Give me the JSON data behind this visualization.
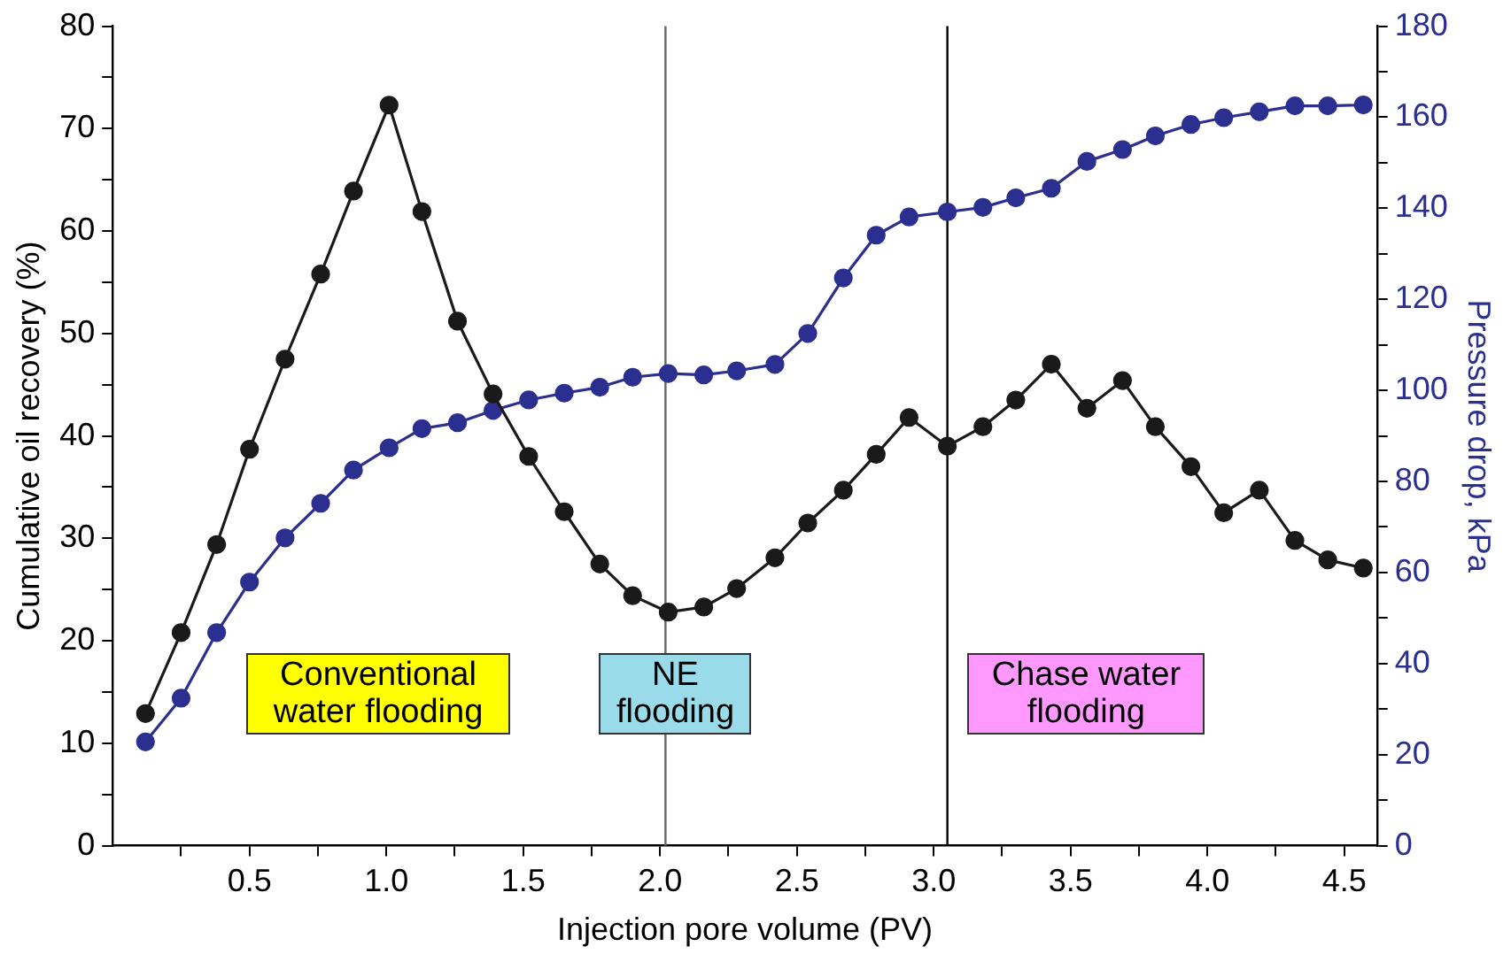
{
  "chart_data": {
    "type": "line",
    "xlabel": "Injection pore volume (PV)",
    "ylabel": "Cumulative oil recovery (%)",
    "y2label": "Pressure drop, kPa",
    "x": [
      0.12,
      0.25,
      0.38,
      0.5,
      0.63,
      0.76,
      0.88,
      1.01,
      1.13,
      1.26,
      1.39,
      1.52,
      1.65,
      1.78,
      1.9,
      2.03,
      2.16,
      2.28,
      2.42,
      2.54,
      2.67,
      2.79,
      2.91,
      3.05,
      3.18,
      3.3,
      3.43,
      3.56,
      3.69,
      3.81,
      3.94,
      4.06,
      4.19,
      4.32,
      4.44,
      4.57
    ],
    "series": [
      {
        "color": "#1a1a1a",
        "values": [
          12.9,
          20.8,
          29.4,
          38.7,
          47.5,
          55.8,
          63.9,
          72.3,
          61.9,
          51.2,
          44.1,
          38.0,
          32.6,
          27.5,
          24.4,
          22.8,
          23.3,
          25.1,
          28.1,
          31.5,
          34.7,
          38.2,
          41.8,
          39.0,
          40.9,
          43.5,
          47.0,
          42.7,
          45.4,
          40.9,
          37.0,
          32.5,
          34.7,
          29.8,
          27.9,
          27.1
        ]
      },
      {
        "color": "#2b2f8f",
        "axis": "y2",
        "values": [
          22.8,
          32.4,
          46.8,
          57.9,
          67.6,
          75.2,
          82.5,
          87.4,
          91.6,
          92.9,
          95.6,
          97.9,
          99.4,
          100.7,
          102.9,
          103.7,
          103.4,
          104.3,
          105.7,
          112.5,
          124.7,
          134.1,
          138.1,
          139.2,
          140.2,
          142.3,
          144.4,
          150.3,
          152.9,
          155.9,
          158.4,
          159.9,
          161.2,
          162.5,
          162.5,
          162.7
        ]
      }
    ],
    "xlim": [
      0,
      4.62
    ],
    "xticks": [
      {
        "value": 0.25,
        "label": null
      },
      0.5,
      {
        "value": 0.75,
        "label": null
      },
      {
        "value": 1.0,
        "label": "1.0"
      },
      {
        "value": 1.25,
        "label": null
      },
      1.5,
      {
        "value": 1.75,
        "label": null
      },
      {
        "value": 2.0,
        "label": "2.0"
      },
      {
        "value": 2.25,
        "label": null
      },
      2.5,
      {
        "value": 2.75,
        "label": null
      },
      {
        "value": 3.0,
        "label": "3.0"
      },
      {
        "value": 3.25,
        "label": null
      },
      3.5,
      {
        "value": 3.75,
        "label": null
      },
      {
        "value": 4.0,
        "label": "4.0"
      },
      {
        "value": 4.25,
        "label": null
      },
      4.5
    ],
    "ylim": [
      0,
      80
    ],
    "yticks": [
      0,
      {
        "value": 5,
        "label": null
      },
      10,
      {
        "value": 15,
        "label": null
      },
      20,
      {
        "value": 25,
        "label": null
      },
      30,
      {
        "value": 35,
        "label": null
      },
      40,
      {
        "value": 45,
        "label": null
      },
      50,
      {
        "value": 55,
        "label": null
      },
      60,
      {
        "value": 65,
        "label": null
      },
      70,
      {
        "value": 75,
        "label": null
      },
      80
    ],
    "y2lim": [
      0,
      180
    ],
    "y2ticks": [
      0,
      {
        "value": 10,
        "label": null
      },
      20,
      {
        "value": 30,
        "label": null
      },
      40,
      {
        "value": 50,
        "label": null
      },
      60,
      {
        "value": 70,
        "label": null
      },
      80,
      {
        "value": 90,
        "label": null
      },
      100,
      {
        "value": 110,
        "label": null
      },
      120,
      {
        "value": 130,
        "label": null
      },
      140,
      {
        "value": 150,
        "label": null
      },
      160,
      {
        "value": 170,
        "label": null
      },
      180
    ],
    "ref_lines": [
      {
        "axis": "x",
        "value": 2.02,
        "color": "#666666"
      },
      {
        "axis": "x",
        "value": 3.05,
        "color": "#000000"
      }
    ],
    "annotations": [
      "Conventional water flooding",
      "NE flooding",
      "Chase water flooding"
    ],
    "marker": "circle",
    "line_style": "solid",
    "grid": false,
    "legend": false
  }
}
